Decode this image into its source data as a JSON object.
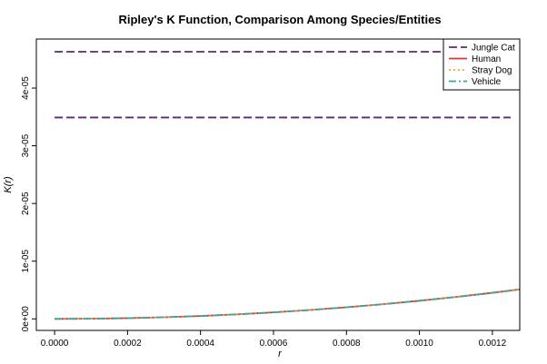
{
  "chart_data": {
    "type": "line",
    "title": "Ripley's K Function, Comparison Among Species/Entities",
    "xlabel": "r",
    "ylabel": "K(r)",
    "xlim": [
      -5e-05,
      0.001275
    ],
    "ylim": [
      -2e-06,
      4.85e-05
    ],
    "x_ticks": [
      {
        "value": 0.0,
        "label": "0.0000"
      },
      {
        "value": 0.0002,
        "label": "0.0002"
      },
      {
        "value": 0.0004,
        "label": "0.0004"
      },
      {
        "value": 0.0006,
        "label": "0.0006"
      },
      {
        "value": 0.0008,
        "label": "0.0008"
      },
      {
        "value": 0.001,
        "label": "0.0010"
      },
      {
        "value": 0.0012,
        "label": "0.0012"
      }
    ],
    "y_ticks": [
      {
        "value": 0,
        "label": "0e+00"
      },
      {
        "value": 1e-05,
        "label": "1e-05"
      },
      {
        "value": 2e-05,
        "label": "2e-05"
      },
      {
        "value": 3e-05,
        "label": "3e-05"
      },
      {
        "value": 4e-05,
        "label": "4e-05"
      }
    ],
    "legend": {
      "position": "top-right",
      "entries": [
        {
          "name": "Jungle Cat",
          "color": "#5b2a6e",
          "dash": "9,4"
        },
        {
          "name": "Human",
          "color": "#e0322c",
          "dash": ""
        },
        {
          "name": "Stray Dog",
          "color": "#f2a33a",
          "dash": "2,3"
        },
        {
          "name": "Vehicle",
          "color": "#3aa6a0",
          "dash": "8,3,2,3"
        }
      ]
    },
    "series": [
      {
        "name": "Jungle Cat",
        "color": "#5b2a6e",
        "dash": "9,4",
        "segments": [
          {
            "x": [
              0.0,
              0.00125
            ],
            "y": [
              4.63e-05,
              4.63e-05
            ]
          },
          {
            "x": [
              0.0,
              0.00125
            ],
            "y": [
              3.49e-05,
              3.49e-05
            ]
          }
        ]
      },
      {
        "name": "Human",
        "color": "#e0322c",
        "dash": "",
        "x": [
          0.0,
          0.0001,
          0.0002,
          0.0003,
          0.0004,
          0.0005,
          0.0006,
          0.0007,
          0.0008,
          0.0009,
          0.001,
          0.0011,
          0.0012,
          0.001275
        ],
        "y": [
          0.0,
          3.14e-08,
          1.26e-07,
          2.83e-07,
          5.03e-07,
          7.85e-07,
          1.13e-06,
          1.54e-06,
          2.01e-06,
          2.54e-06,
          3.14e-06,
          3.8e-06,
          4.52e-06,
          5.11e-06
        ]
      },
      {
        "name": "Stray Dog",
        "color": "#f2a33a",
        "dash": "2,3",
        "x": [
          0.0,
          0.0001,
          0.0002,
          0.0003,
          0.0004,
          0.0005,
          0.0006,
          0.0007,
          0.0008,
          0.0009,
          0.001,
          0.0011,
          0.0012,
          0.001275
        ],
        "y": [
          0.0,
          3.14e-08,
          1.26e-07,
          2.83e-07,
          5.03e-07,
          7.85e-07,
          1.13e-06,
          1.54e-06,
          2.01e-06,
          2.54e-06,
          3.14e-06,
          3.8e-06,
          4.52e-06,
          5.11e-06
        ]
      },
      {
        "name": "Vehicle",
        "color": "#3aa6a0",
        "dash": "8,3,2,3",
        "x": [
          0.0,
          0.0001,
          0.0002,
          0.0003,
          0.0004,
          0.0005,
          0.0006,
          0.0007,
          0.0008,
          0.0009,
          0.001,
          0.0011,
          0.0012,
          0.001275
        ],
        "y": [
          0.0,
          3.14e-08,
          1.26e-07,
          2.83e-07,
          5.03e-07,
          7.85e-07,
          1.13e-06,
          1.54e-06,
          2.01e-06,
          2.54e-06,
          3.14e-06,
          3.8e-06,
          4.52e-06,
          5.11e-06
        ]
      }
    ]
  }
}
